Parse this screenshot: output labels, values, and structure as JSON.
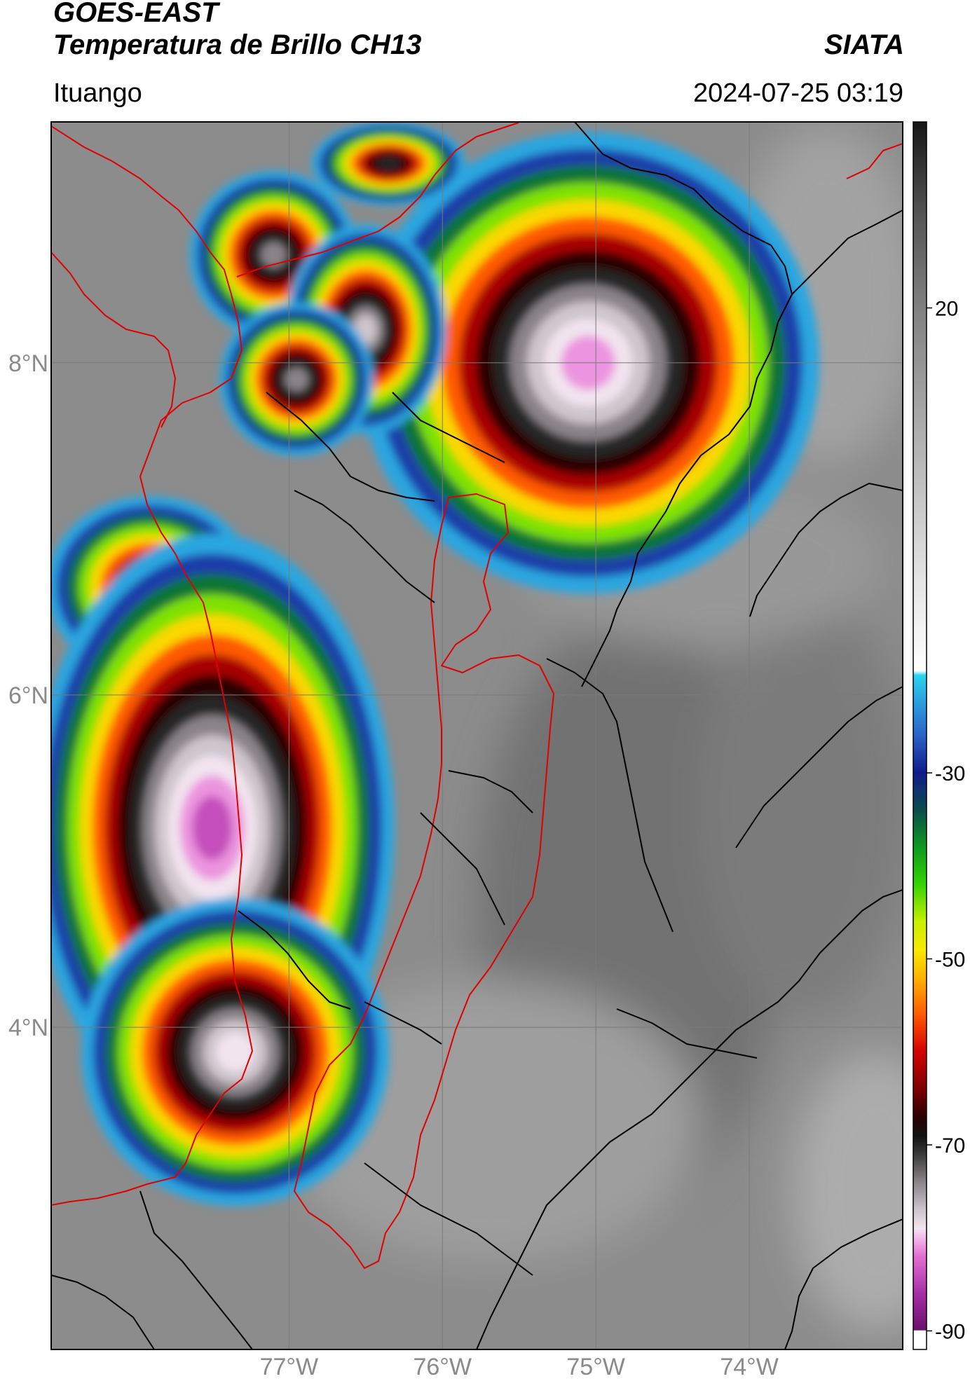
{
  "header": {
    "satellite": "GOES-EAST",
    "product": "Temperatura de Brillo CH13",
    "brand": "SIATA",
    "location": "Ituango",
    "timestamp": "2024-07-25 03:19"
  },
  "map": {
    "lat_range": [
      2.06,
      9.45
    ],
    "lon_range": [
      -78.55,
      -73.0
    ],
    "lat_ticks": [
      {
        "value": 8,
        "label": "8°N"
      },
      {
        "value": 6,
        "label": "6°N"
      },
      {
        "value": 4,
        "label": "4°N"
      }
    ],
    "lon_ticks": [
      {
        "value": -77,
        "label": "77°W"
      },
      {
        "value": -76,
        "label": "76°W"
      },
      {
        "value": -75,
        "label": "75°W"
      },
      {
        "value": -74,
        "label": "74°W"
      }
    ],
    "colors": {
      "background": "#8c8c8c",
      "gridline": "#7a7a7a",
      "admin_border": "#000000",
      "country_border": "#e00000"
    },
    "storms": [
      {
        "name": "northeast-cluster",
        "lat": 8.0,
        "lon": -75.05,
        "min_temp": -82
      },
      {
        "name": "north-cell-1",
        "lat": 8.65,
        "lon": -77.1,
        "min_temp": -75
      },
      {
        "name": "north-cell-2",
        "lat": 8.2,
        "lon": -76.5,
        "min_temp": -76
      },
      {
        "name": "north-cell-3",
        "lat": 7.9,
        "lon": -76.95,
        "min_temp": -75
      },
      {
        "name": "top-cell",
        "lat": 9.2,
        "lon": -76.35,
        "min_temp": -70
      },
      {
        "name": "west-cell",
        "lat": 6.65,
        "lon": -77.9,
        "min_temp": -72
      },
      {
        "name": "southwest-cluster",
        "lat": 5.2,
        "lon": -77.5,
        "min_temp": -84
      },
      {
        "name": "south-cluster",
        "lat": 3.85,
        "lon": -77.35,
        "min_temp": -79
      }
    ]
  },
  "colorbar": {
    "label_ticks": [
      {
        "value": 20,
        "label": "20"
      },
      {
        "value": -30,
        "label": "-30"
      },
      {
        "value": -50,
        "label": "-50"
      },
      {
        "value": -70,
        "label": "-70"
      },
      {
        "value": -90,
        "label": "-90"
      }
    ],
    "stops": [
      {
        "value": -92,
        "color": "#ffffff"
      },
      {
        "value": -90,
        "color": "#ffffff"
      },
      {
        "value": -89.9,
        "color": "#6b0f6b"
      },
      {
        "value": -86,
        "color": "#a62ea6"
      },
      {
        "value": -82,
        "color": "#e36fd1"
      },
      {
        "value": -80,
        "color": "#f4b8ec"
      },
      {
        "value": -79,
        "color": "#f2e4ee"
      },
      {
        "value": -77,
        "color": "#cfc5cc"
      },
      {
        "value": -74,
        "color": "#8a8488"
      },
      {
        "value": -71,
        "color": "#3a3a3a"
      },
      {
        "value": -69,
        "color": "#111111"
      },
      {
        "value": -67,
        "color": "#2a0000"
      },
      {
        "value": -64,
        "color": "#7a0000"
      },
      {
        "value": -60,
        "color": "#d40000"
      },
      {
        "value": -56,
        "color": "#ff5a00"
      },
      {
        "value": -52,
        "color": "#ffb300"
      },
      {
        "value": -49,
        "color": "#f7ea00"
      },
      {
        "value": -46,
        "color": "#c8f000"
      },
      {
        "value": -42,
        "color": "#36d400"
      },
      {
        "value": -38,
        "color": "#0c9a1e"
      },
      {
        "value": -34,
        "color": "#0a4d4d"
      },
      {
        "value": -30,
        "color": "#101a8a"
      },
      {
        "value": -26,
        "color": "#2a62c8"
      },
      {
        "value": -22,
        "color": "#2aa6e0"
      },
      {
        "value": -19.5,
        "color": "#2ad4ee"
      },
      {
        "value": -19,
        "color": "#ffffff"
      },
      {
        "value": -10,
        "color": "#e6e6e6"
      },
      {
        "value": 0,
        "color": "#c4c4c4"
      },
      {
        "value": 10,
        "color": "#a2a2a2"
      },
      {
        "value": 20,
        "color": "#808080"
      },
      {
        "value": 30,
        "color": "#555555"
      },
      {
        "value": 40,
        "color": "#151515"
      }
    ]
  }
}
